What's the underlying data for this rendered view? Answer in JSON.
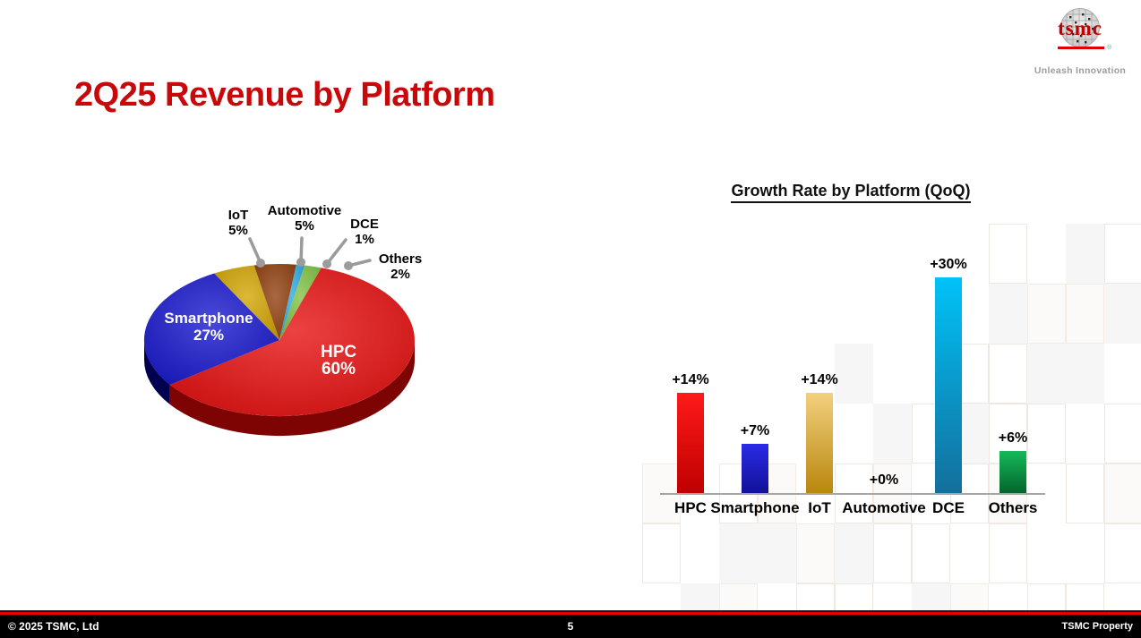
{
  "slide": {
    "title": "2Q25 Revenue by Platform",
    "accent_color": "#C8090B"
  },
  "logo": {
    "brand": "tsmc",
    "registered_mark": "®",
    "tagline": "Unleash Innovation"
  },
  "footer": {
    "copyright": "© 2025 TSMC, Ltd",
    "page_number": "5",
    "property": "TSMC Property"
  },
  "chart_data": [
    {
      "type": "pie",
      "title": "2Q25 Revenue by Platform",
      "unit": "%",
      "style": "3d",
      "start_angle_deg": 18,
      "slices": [
        {
          "label": "HPC",
          "value": 60,
          "color": "#E60D0D",
          "side_color": "#7E0404",
          "label_style": "inside"
        },
        {
          "label": "Smartphone",
          "value": 27,
          "color": "#1515CD",
          "side_color": "#00004E",
          "label_style": "inside"
        },
        {
          "label": "IoT",
          "value": 5,
          "color": "#D2A400",
          "label_style": "callout"
        },
        {
          "label": "Automotive",
          "value": 5,
          "color": "#8F3E0C",
          "label_style": "callout"
        },
        {
          "label": "DCE",
          "value": 1,
          "color": "#29ABE2",
          "label_style": "callout"
        },
        {
          "label": "Others",
          "value": 2,
          "color": "#7FC241",
          "label_style": "callout"
        }
      ],
      "callout_color": "#9B9B9B"
    },
    {
      "type": "bar",
      "title": "Growth Rate by Platform (QoQ)",
      "categories": [
        "HPC",
        "Smartphone",
        "IoT",
        "Automotive",
        "DCE",
        "Others"
      ],
      "values": [
        14,
        7,
        14,
        0,
        30,
        6
      ],
      "value_labels": [
        "+14%",
        "+7%",
        "+14%",
        "+0%",
        "+30%",
        "+6%"
      ],
      "bar_colors_top": [
        "#FF1A1A",
        "#2B2BE6",
        "#F3D07E",
        "#999999",
        "#00C2F8",
        "#16B95A"
      ],
      "bar_colors_bottom": [
        "#BE0000",
        "#111198",
        "#B8860B",
        "#999999",
        "#136F9B",
        "#03632B"
      ],
      "ylim": [
        0,
        32
      ],
      "axis_color": "#A6A6A6",
      "grid": false,
      "legend": "none"
    }
  ]
}
